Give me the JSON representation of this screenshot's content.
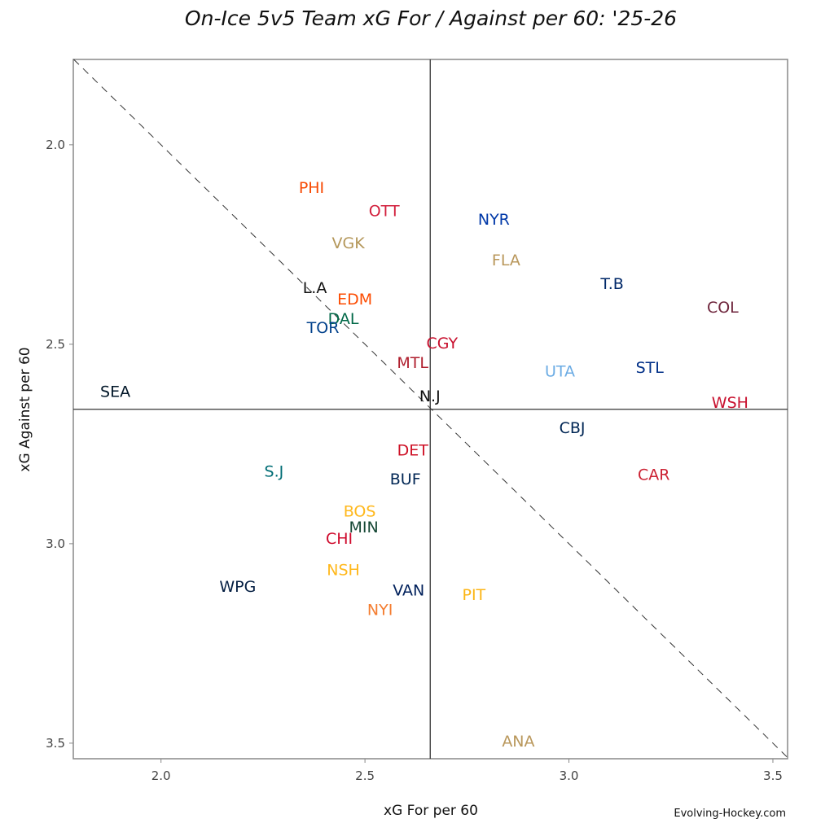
{
  "chart_data": {
    "type": "scatter",
    "title": "On-Ice 5v5 Team xG For / Against per 60: '25-26",
    "xlabel": "xG For per 60",
    "ylabel": "xG Against per 60",
    "xlim": [
      1.785,
      3.536
    ],
    "ylim": [
      1.786,
      3.539
    ],
    "y_inverted": true,
    "xticks": [
      2.0,
      2.5,
      3.0,
      3.5
    ],
    "xtick_labels": [
      "2.0",
      "2.5",
      "3.0",
      "3.5"
    ],
    "yticks": [
      2.0,
      2.5,
      3.0,
      3.5
    ],
    "ytick_labels": [
      "2.0",
      "2.5",
      "3.0",
      "3.5"
    ],
    "grid": false,
    "reference_lines": {
      "x_mean": 2.66,
      "y_mean": 2.663,
      "diagonal": "y = x (dashed)"
    },
    "credit": "Evolving-Hockey.com",
    "points": [
      {
        "label": "PHI",
        "x": 2.369,
        "y": 2.106,
        "color": "#F74902"
      },
      {
        "label": "OTT",
        "x": 2.547,
        "y": 2.165,
        "color": "#D21F3C"
      },
      {
        "label": "NYR",
        "x": 2.816,
        "y": 2.186,
        "color": "#0038A8"
      },
      {
        "label": "VGK",
        "x": 2.459,
        "y": 2.245,
        "color": "#B4975A"
      },
      {
        "label": "FLA",
        "x": 2.846,
        "y": 2.288,
        "color": "#B9975B"
      },
      {
        "label": "L.A",
        "x": 2.377,
        "y": 2.357,
        "color": "#111111"
      },
      {
        "label": "T.B",
        "x": 3.106,
        "y": 2.347,
        "color": "#002868"
      },
      {
        "label": "EDM",
        "x": 2.475,
        "y": 2.386,
        "color": "#FC4C02"
      },
      {
        "label": "COL",
        "x": 3.377,
        "y": 2.406,
        "color": "#6F263D"
      },
      {
        "label": "DAL",
        "x": 2.447,
        "y": 2.435,
        "color": "#006847"
      },
      {
        "label": "TOR",
        "x": 2.397,
        "y": 2.457,
        "color": "#00408B"
      },
      {
        "label": "CGY",
        "x": 2.689,
        "y": 2.496,
        "color": "#C8102E"
      },
      {
        "label": "MTL",
        "x": 2.617,
        "y": 2.545,
        "color": "#AF1E2D"
      },
      {
        "label": "UTA",
        "x": 2.978,
        "y": 2.567,
        "color": "#6CACE4"
      },
      {
        "label": "STL",
        "x": 3.198,
        "y": 2.557,
        "color": "#002F87"
      },
      {
        "label": "SEA",
        "x": 1.888,
        "y": 2.618,
        "color": "#001628"
      },
      {
        "label": "N.J",
        "x": 2.659,
        "y": 2.629,
        "color": "#111111"
      },
      {
        "label": "WSH",
        "x": 3.395,
        "y": 2.645,
        "color": "#C8102E"
      },
      {
        "label": "CBJ",
        "x": 3.008,
        "y": 2.708,
        "color": "#002654"
      },
      {
        "label": "DET",
        "x": 2.617,
        "y": 2.765,
        "color": "#CE1126"
      },
      {
        "label": "S.J",
        "x": 2.277,
        "y": 2.818,
        "color": "#006D75"
      },
      {
        "label": "CAR",
        "x": 3.208,
        "y": 2.826,
        "color": "#CC2233"
      },
      {
        "label": "BUF",
        "x": 2.599,
        "y": 2.837,
        "color": "#002654"
      },
      {
        "label": "BOS",
        "x": 2.487,
        "y": 2.918,
        "color": "#FFB81C"
      },
      {
        "label": "MIN",
        "x": 2.497,
        "y": 2.957,
        "color": "#154734"
      },
      {
        "label": "CHI",
        "x": 2.437,
        "y": 2.986,
        "color": "#CF0A2C"
      },
      {
        "label": "NSH",
        "x": 2.447,
        "y": 3.065,
        "color": "#FFB81C"
      },
      {
        "label": "WPG",
        "x": 2.188,
        "y": 3.106,
        "color": "#041E42"
      },
      {
        "label": "VAN",
        "x": 2.607,
        "y": 3.116,
        "color": "#00205B"
      },
      {
        "label": "PIT",
        "x": 2.767,
        "y": 3.127,
        "color": "#FCB514"
      },
      {
        "label": "NYI",
        "x": 2.537,
        "y": 3.165,
        "color": "#F47D30"
      },
      {
        "label": "ANA",
        "x": 2.876,
        "y": 3.494,
        "color": "#B9975B"
      }
    ]
  }
}
